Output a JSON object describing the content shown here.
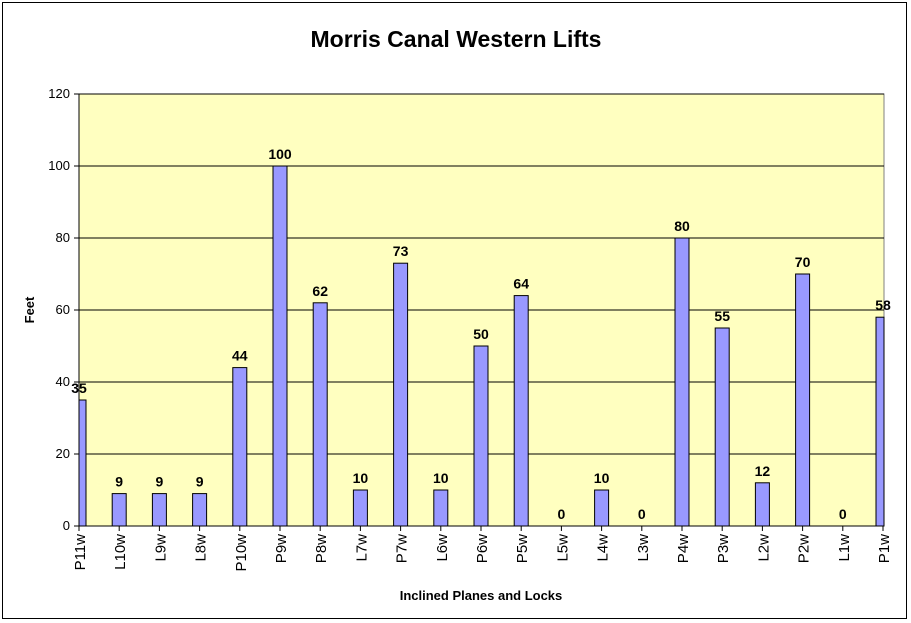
{
  "chart_data": {
    "type": "bar",
    "title": "Morris Canal Western Lifts",
    "xlabel": "Inclined Planes and Locks",
    "ylabel": "Feet",
    "ylim": [
      0,
      120
    ],
    "yticks": [
      0,
      20,
      40,
      60,
      80,
      100,
      120
    ],
    "grid": true,
    "legend": "none",
    "categories": [
      "P11w",
      "L10w",
      "L9w",
      "L8w",
      "P10w",
      "P9w",
      "P8w",
      "L7w",
      "P7w",
      "L6w",
      "P6w",
      "P5w",
      "L5w",
      "L4w",
      "L3w",
      "P4w",
      "P3w",
      "L2w",
      "P2w",
      "L1w",
      "P1w"
    ],
    "values": [
      35,
      9,
      9,
      9,
      44,
      100,
      62,
      10,
      73,
      10,
      50,
      64,
      0,
      10,
      0,
      80,
      55,
      12,
      70,
      0,
      58
    ],
    "colors": {
      "plot_area": "#ffffc0",
      "bar_fill": "#9999ff",
      "bar_stroke": "#000000",
      "grid": "#000000"
    }
  }
}
